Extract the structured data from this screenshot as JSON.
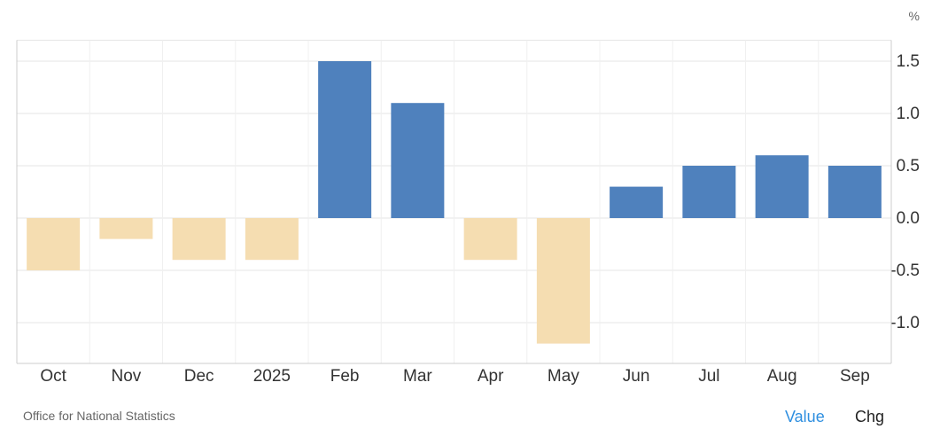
{
  "chart_data": {
    "type": "bar",
    "categories": [
      "Oct",
      "Nov",
      "Dec",
      "2025",
      "Feb",
      "Mar",
      "Apr",
      "May",
      "Jun",
      "Jul",
      "Aug",
      "Sep"
    ],
    "values": [
      -0.5,
      -0.2,
      -0.4,
      -0.4,
      1.5,
      1.1,
      -0.4,
      -1.2,
      0.3,
      0.5,
      0.6,
      0.5
    ],
    "unit": "%",
    "ylim": [
      -1.4,
      1.7
    ],
    "yticks": [
      1.5,
      1.0,
      0.5,
      0.0,
      -0.5,
      -1.0
    ],
    "ytick_labels": [
      "1.5",
      "1.0",
      "0.5",
      "0.0",
      "-0.5",
      "-1.0"
    ],
    "y_axis_side": "right",
    "grid": true,
    "colors": {
      "positive": "#4f81bd",
      "negative": "#f5ddb1",
      "grid": "#e6e6e6",
      "axis": "#cccccc"
    }
  },
  "footer": {
    "source": "Office for National Statistics",
    "toggle_value": "Value",
    "toggle_chg": "Chg"
  }
}
